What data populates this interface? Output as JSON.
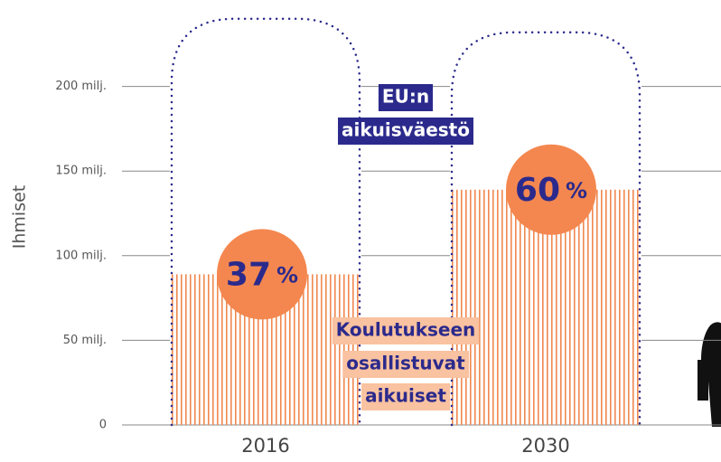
{
  "chart_data": {
    "type": "bar",
    "y_label": "Ihmiset",
    "categories": [
      "2016",
      "2030"
    ],
    "series": [
      {
        "name": [
          "Koulutukseen",
          "osallistuvat",
          "aikuiset"
        ],
        "color": "#f0884f",
        "values": [
          89,
          139
        ]
      },
      {
        "name": [
          "EU:n",
          "aikuisväestö"
        ],
        "color": "#2b2a8c",
        "values": [
          240,
          232
        ]
      }
    ],
    "shares": [
      37,
      60
    ],
    "share_unit": "%",
    "share_color": "#f4874f",
    "ylim": [
      0,
      250
    ],
    "yticks": [
      0,
      {
        "value": 50,
        "label": "50 milj."
      },
      {
        "value": 100,
        "label": "100 milj."
      },
      {
        "value": 150,
        "label": "150 milj."
      },
      {
        "value": 200,
        "label": "200 milj."
      }
    ],
    "grid": true
  }
}
